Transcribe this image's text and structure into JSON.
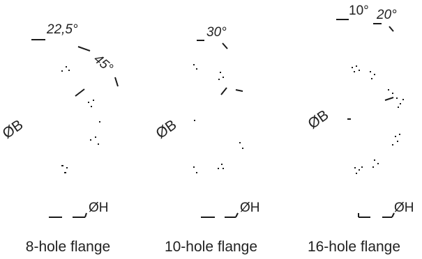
{
  "flanges": [
    {
      "caption": "8-hole flange",
      "angles": [
        "22,5°",
        "45°"
      ],
      "diameter_b": "ØB",
      "diameter_h": "ØH"
    },
    {
      "caption": "10-hole flange",
      "angles": [
        "30°"
      ],
      "diameter_b": "ØB",
      "diameter_h": "ØH"
    },
    {
      "caption": "16-hole flange",
      "angles": [
        "10°",
        "20°"
      ],
      "diameter_b": "ØB",
      "diameter_h": "ØH"
    }
  ],
  "colors": {
    "ink": "#1a1a1a",
    "background": "#ffffff"
  }
}
